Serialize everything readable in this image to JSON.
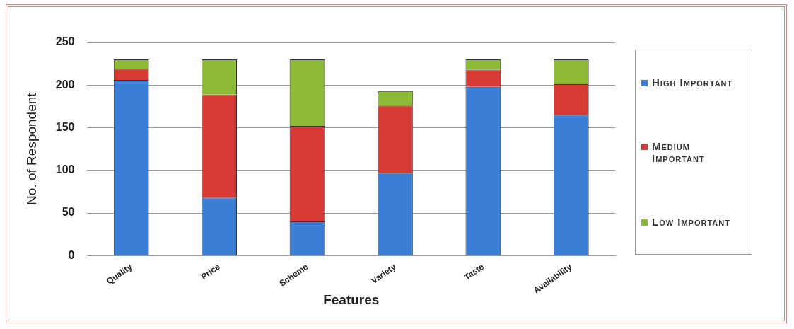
{
  "chart_data": {
    "type": "bar",
    "stacked": true,
    "xlabel": "Features",
    "ylabel": "No. of Respondent",
    "categories": [
      "Quality",
      "Price",
      "Scheme",
      "Variety",
      "Taste",
      "Availability"
    ],
    "series": [
      {
        "name": "High Important",
        "color": "#3a7fd5",
        "values": [
          206,
          68,
          40,
          97,
          198,
          165
        ]
      },
      {
        "name": "Medium Important",
        "color": "#d63a35",
        "values": [
          13,
          121,
          112,
          79,
          20,
          36
        ]
      },
      {
        "name": "Low Important",
        "color": "#8cba35",
        "values": [
          11,
          41,
          78,
          17,
          12,
          29
        ]
      }
    ],
    "ylim": [
      0,
      250
    ],
    "yticks": [
      0,
      50,
      100,
      150,
      200,
      250
    ],
    "grid": "y",
    "legend": "right"
  }
}
